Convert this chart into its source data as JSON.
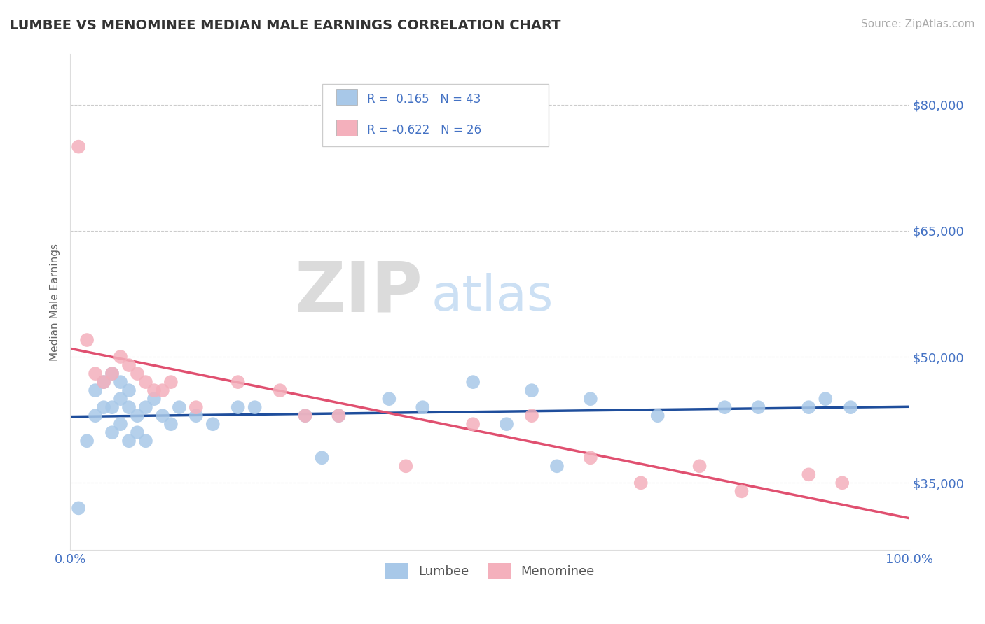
{
  "title": "LUMBEE VS MENOMINEE MEDIAN MALE EARNINGS CORRELATION CHART",
  "source_text": "Source: ZipAtlas.com",
  "ylabel": "Median Male Earnings",
  "xlim": [
    0.0,
    1.0
  ],
  "ylim": [
    27000,
    86000
  ],
  "yticks": [
    35000,
    50000,
    65000,
    80000
  ],
  "ytick_labels": [
    "$35,000",
    "$50,000",
    "$65,000",
    "$80,000"
  ],
  "xticks": [
    0.0,
    0.25,
    0.5,
    0.75,
    1.0
  ],
  "xtick_labels": [
    "0.0%",
    "",
    "",
    "",
    "100.0%"
  ],
  "background_color": "#ffffff",
  "grid_color": "#cccccc",
  "title_color": "#333333",
  "axis_color": "#4472c4",
  "lumbee_color": "#a8c8e8",
  "menominee_color": "#f4b0bc",
  "lumbee_line_color": "#1f4e9c",
  "menominee_line_color": "#e05070",
  "lumbee_label": "Lumbee",
  "menominee_label": "Menominee",
  "watermark_zip": "ZIP",
  "watermark_atlas": "atlas",
  "lumbee_R": 0.165,
  "lumbee_N": 43,
  "menominee_R": -0.622,
  "menominee_N": 26,
  "lumbee_x": [
    0.01,
    0.02,
    0.03,
    0.03,
    0.04,
    0.04,
    0.05,
    0.05,
    0.05,
    0.06,
    0.06,
    0.06,
    0.07,
    0.07,
    0.07,
    0.08,
    0.08,
    0.09,
    0.09,
    0.1,
    0.11,
    0.12,
    0.13,
    0.15,
    0.17,
    0.2,
    0.22,
    0.28,
    0.3,
    0.32,
    0.38,
    0.42,
    0.48,
    0.52,
    0.55,
    0.58,
    0.62,
    0.7,
    0.78,
    0.82,
    0.88,
    0.9,
    0.93
  ],
  "lumbee_y": [
    32000,
    40000,
    43000,
    46000,
    44000,
    47000,
    41000,
    44000,
    48000,
    42000,
    45000,
    47000,
    40000,
    44000,
    46000,
    41000,
    43000,
    40000,
    44000,
    45000,
    43000,
    42000,
    44000,
    43000,
    42000,
    44000,
    44000,
    43000,
    38000,
    43000,
    45000,
    44000,
    47000,
    42000,
    46000,
    37000,
    45000,
    43000,
    44000,
    44000,
    44000,
    45000,
    44000
  ],
  "menominee_x": [
    0.01,
    0.02,
    0.03,
    0.04,
    0.05,
    0.06,
    0.07,
    0.08,
    0.09,
    0.1,
    0.11,
    0.12,
    0.15,
    0.2,
    0.25,
    0.28,
    0.32,
    0.4,
    0.48,
    0.55,
    0.62,
    0.68,
    0.75,
    0.8,
    0.88,
    0.92
  ],
  "menominee_y": [
    75000,
    52000,
    48000,
    47000,
    48000,
    50000,
    49000,
    48000,
    47000,
    46000,
    46000,
    47000,
    44000,
    47000,
    46000,
    43000,
    43000,
    37000,
    42000,
    43000,
    38000,
    35000,
    37000,
    34000,
    36000,
    35000
  ]
}
